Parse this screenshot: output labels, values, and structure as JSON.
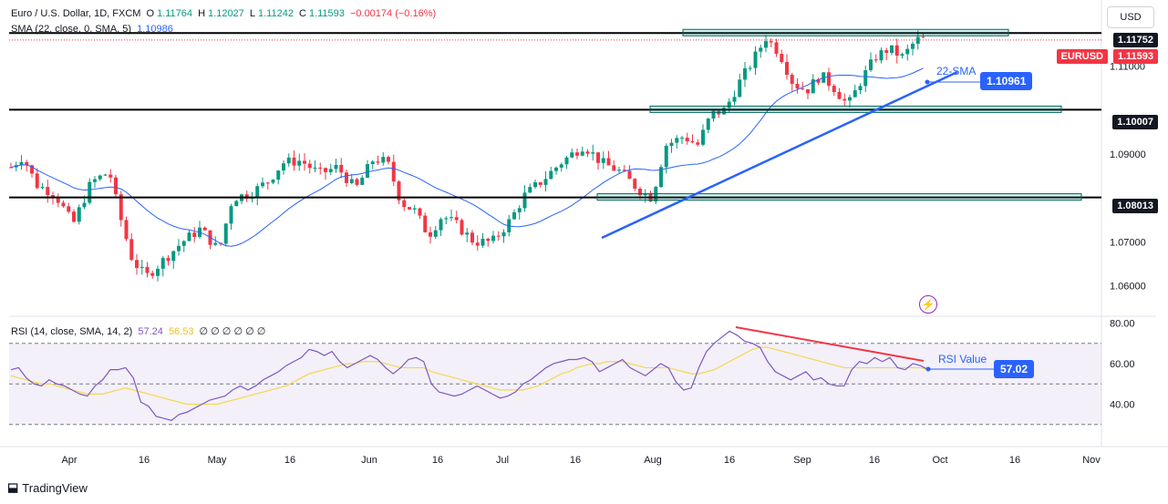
{
  "header": {
    "symbol": "Euro / U.S. Dollar, 1D, FXCM",
    "open_label": "O",
    "open": "1.11764",
    "high_label": "H",
    "high": "1.12027",
    "low_label": "L",
    "low": "1.11242",
    "close_label": "C",
    "close": "1.11593",
    "change": "−0.00174 (−0.16%)",
    "sma_title": "SMA (22, close, 0, SMA, 5)",
    "sma_value": "1.10986",
    "rsi_title": "RSI (14, close, SMA, 14, 2)",
    "rsi_value": "57.24",
    "rsi_ma_value": "56.53",
    "rsi_extra": "∅ ∅ ∅ ∅ ∅ ∅"
  },
  "currency_button": "USD",
  "tradingview_logo": "TradingView",
  "colors": {
    "up": "#089981",
    "down": "#f23645",
    "sma": "#2962ff",
    "rsi": "#7e57c2",
    "rsi_ma": "#f5d84e",
    "trend": "#2962ff",
    "divergence": "#f23645"
  },
  "chart_data": {
    "type": "candlestick",
    "price_axis": [
      "1.06000",
      "1.07000",
      "1.09000",
      "1.11000"
    ],
    "price_range": [
      1.0535,
      1.124
    ],
    "x_labels": [
      "Apr",
      "16",
      "May",
      "16",
      "Jun",
      "16",
      "Jul",
      "16",
      "Aug",
      "16",
      "Sep",
      "16",
      "Oct",
      "16",
      "Nov"
    ],
    "horizontal_levels": [
      {
        "value": 1.11752,
        "label": "1.11752"
      },
      {
        "value": 1.10007,
        "label": "1.10007"
      },
      {
        "value": 1.08013,
        "label": "1.08013"
      }
    ],
    "current_price": {
      "symbol": "EURUSD",
      "value": "1.11593"
    },
    "sma_label": "22-SMA",
    "sma_tag": "1.10961",
    "rsi": {
      "axis": [
        "80.00",
        "60.00",
        "40.00"
      ],
      "range": [
        20,
        82
      ],
      "bands": [
        70,
        50,
        30
      ],
      "value_label": "RSI Value",
      "value_tag": "57.02",
      "values": [
        57,
        58,
        53,
        50,
        49,
        52,
        50,
        49,
        47,
        45,
        44,
        49,
        52,
        57,
        57,
        58,
        53,
        41,
        39,
        34,
        33,
        32,
        35,
        36,
        38,
        40,
        42,
        43,
        44,
        47,
        49,
        47,
        49,
        52,
        54,
        56,
        59,
        61,
        63,
        67,
        66,
        64,
        66,
        61,
        58,
        60,
        62,
        64,
        62,
        58,
        55,
        58,
        62,
        63,
        61,
        50,
        46,
        45,
        44,
        45,
        47,
        49,
        47,
        45,
        43,
        44,
        46,
        50,
        52,
        55,
        58,
        60,
        61,
        62,
        62,
        63,
        61,
        56,
        58,
        60,
        62,
        58,
        56,
        54,
        57,
        60,
        58,
        51,
        47,
        48,
        58,
        66,
        70,
        73,
        76,
        74,
        71,
        70,
        68,
        61,
        56,
        54,
        52,
        54,
        56,
        52,
        53,
        50,
        49,
        49,
        57,
        61,
        60,
        63,
        61,
        63,
        58,
        57,
        60,
        59,
        57
      ],
      "ma_values": [
        54,
        53,
        52,
        51,
        50,
        50,
        49,
        48,
        47,
        46,
        45,
        45,
        45,
        46,
        47,
        48,
        47,
        46,
        45,
        44,
        43,
        42,
        41,
        40,
        40,
        40,
        40,
        40,
        41,
        42,
        43,
        44,
        45,
        46,
        47,
        48,
        49,
        51,
        53,
        55,
        56,
        57,
        58,
        59,
        60,
        60,
        61,
        61,
        61,
        60,
        59,
        58,
        58,
        58,
        58,
        56,
        55,
        54,
        53,
        52,
        51,
        50,
        49,
        48,
        47,
        47,
        47,
        47,
        48,
        49,
        51,
        53,
        55,
        56,
        58,
        59,
        60,
        60,
        61,
        61,
        61,
        60,
        59,
        58,
        58,
        58,
        58,
        57,
        56,
        55,
        55,
        56,
        57,
        59,
        61,
        63,
        65,
        67,
        68,
        68,
        67,
        66,
        65,
        64,
        63,
        62,
        61,
        60,
        59,
        58,
        58,
        58,
        58,
        58,
        58,
        58,
        58,
        58,
        58,
        58,
        57
      ]
    }
  }
}
